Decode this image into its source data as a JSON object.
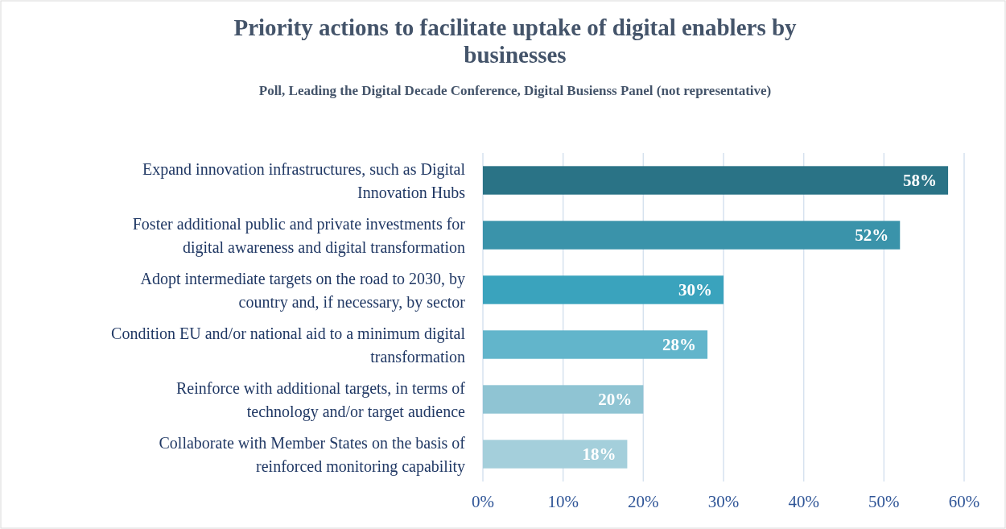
{
  "chart_data": {
    "type": "bar",
    "orientation": "horizontal",
    "title": "Priority actions to facilitate uptake of digital enablers by businesses",
    "subtitle": "Poll, Leading the Digital Decade Conference, Digital Busienss Panel (not representative)",
    "categories": [
      "Expand innovation infrastructures, such as Digital Innovation Hubs",
      "Foster additional public and private investments for digital awareness and digital transformation",
      "Adopt intermediate targets on the road to 2030, by country and, if necessary, by sector",
      "Condition EU and/or national aid to a minimum digital transformation",
      "Reinforce with additional targets, in terms of technology and/or target audience",
      "Collaborate with Member States on the basis of reinforced monitoring capability"
    ],
    "values": [
      58,
      52,
      30,
      28,
      20,
      18
    ],
    "colors": [
      "#2a7386",
      "#3a93aa",
      "#3aa3bd",
      "#62b5cb",
      "#8fc4d3",
      "#a4cfdb"
    ],
    "value_labels": [
      "58%",
      "52%",
      "30%",
      "28%",
      "20%",
      "18%"
    ],
    "xlim": [
      0,
      60
    ],
    "xticks": [
      {
        "value": 0,
        "label": "0%"
      },
      {
        "value": 10,
        "label": "10%"
      },
      {
        "value": 20,
        "label": "20%"
      },
      {
        "value": 30,
        "label": "30%"
      },
      {
        "value": 40,
        "label": "40%"
      },
      {
        "value": 50,
        "label": "50%"
      },
      {
        "value": 60,
        "label": "60%"
      }
    ],
    "grid": "x"
  }
}
